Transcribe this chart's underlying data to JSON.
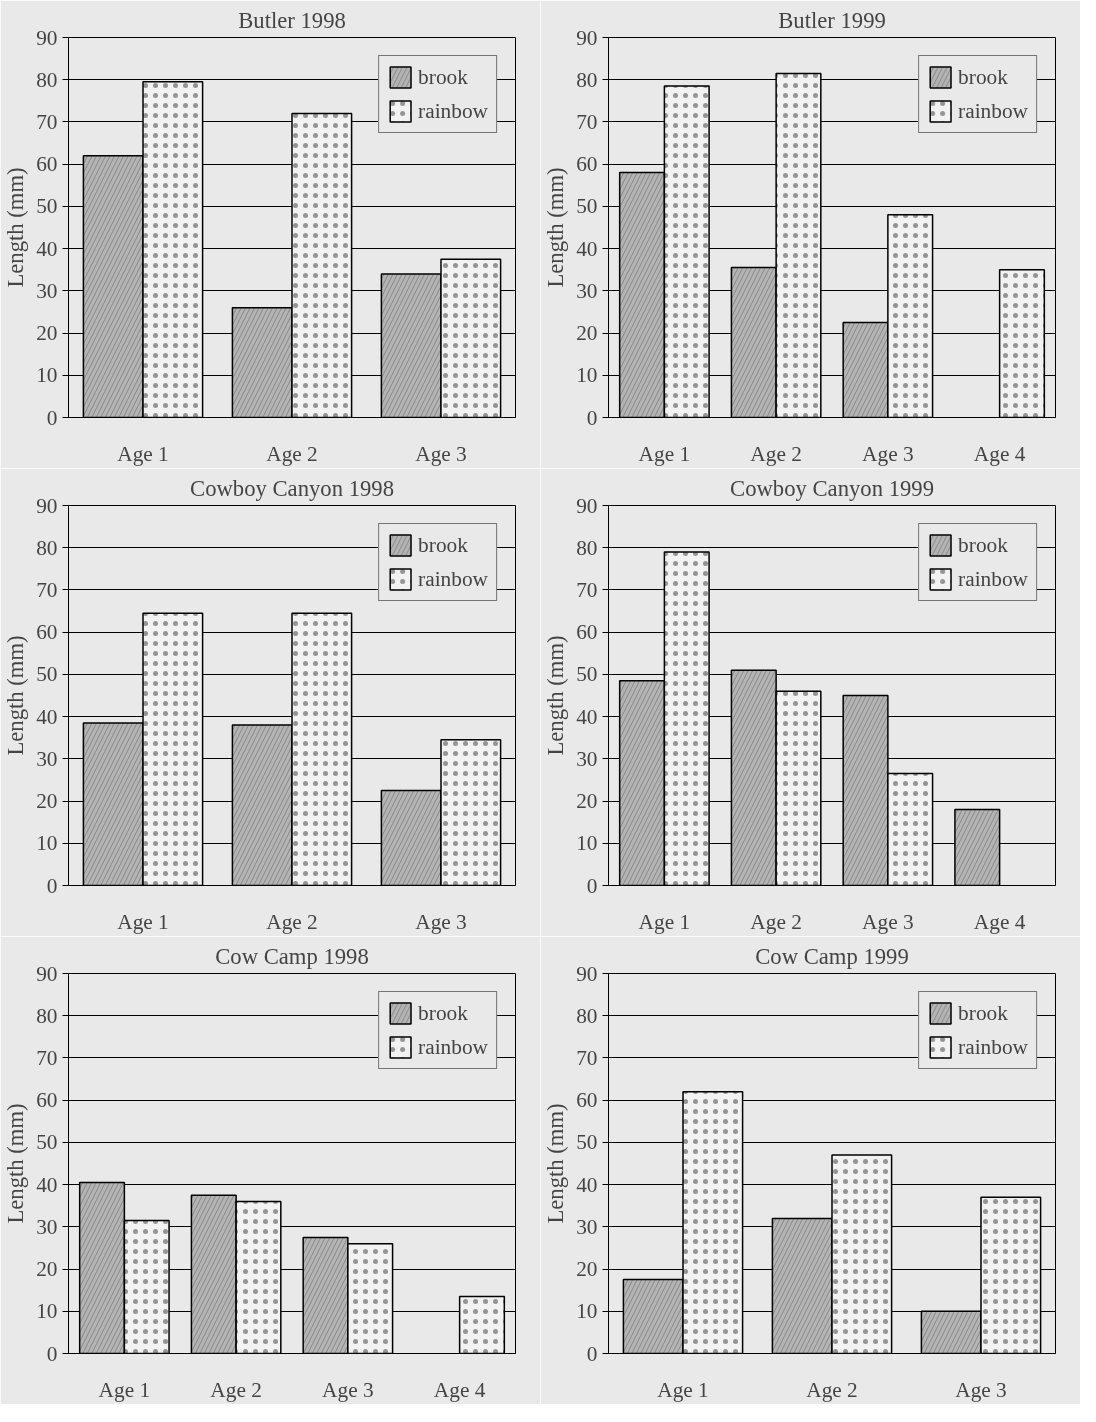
{
  "chart_data": [
    {
      "type": "bar",
      "title": "Butler 1998",
      "ylabel": "Length (mm)",
      "categories": [
        "Age 1",
        "Age 2",
        "Age 3"
      ],
      "series": [
        {
          "name": "brook",
          "color": "#b4b4b4",
          "values": [
            62,
            26,
            34
          ]
        },
        {
          "name": "rainbow",
          "color": "#f2f2f2",
          "values": [
            79.5,
            72,
            37.5
          ]
        }
      ],
      "ylim": [
        0,
        90
      ],
      "yticks": [
        0,
        10,
        20,
        30,
        40,
        50,
        60,
        70,
        80,
        90
      ],
      "grid": "y",
      "legend": "top right"
    },
    {
      "type": "bar",
      "title": "Butler 1999",
      "ylabel": "Length (mm)",
      "categories": [
        "Age 1",
        "Age 2",
        "Age 3",
        "Age 4"
      ],
      "series": [
        {
          "name": "brook",
          "color": "#b4b4b4",
          "values": [
            58,
            35.5,
            22.5,
            null
          ]
        },
        {
          "name": "rainbow",
          "color": "#f2f2f2",
          "values": [
            78.5,
            81.5,
            48,
            35
          ]
        }
      ],
      "ylim": [
        0,
        90
      ],
      "yticks": [
        0,
        10,
        20,
        30,
        40,
        50,
        60,
        70,
        80,
        90
      ],
      "grid": "y",
      "legend": "top right"
    },
    {
      "type": "bar",
      "title": "Cowboy Canyon 1998",
      "ylabel": "Length (mm)",
      "categories": [
        "Age 1",
        "Age 2",
        "Age 3"
      ],
      "series": [
        {
          "name": "brook",
          "color": "#b4b4b4",
          "values": [
            38.5,
            38,
            22.5
          ]
        },
        {
          "name": "rainbow",
          "color": "#f2f2f2",
          "values": [
            64.5,
            64.5,
            34.5
          ]
        }
      ],
      "ylim": [
        0,
        90
      ],
      "yticks": [
        0,
        10,
        20,
        30,
        40,
        50,
        60,
        70,
        80,
        90
      ],
      "grid": "y",
      "legend": "top right"
    },
    {
      "type": "bar",
      "title": "Cowboy Canyon 1999",
      "ylabel": "Length (mm)",
      "categories": [
        "Age 1",
        "Age 2",
        "Age 3",
        "Age 4"
      ],
      "series": [
        {
          "name": "brook",
          "color": "#b4b4b4",
          "values": [
            48.5,
            51,
            45,
            18
          ]
        },
        {
          "name": "rainbow",
          "color": "#f2f2f2",
          "values": [
            79,
            46,
            26.5,
            null
          ]
        }
      ],
      "ylim": [
        0,
        90
      ],
      "yticks": [
        0,
        10,
        20,
        30,
        40,
        50,
        60,
        70,
        80,
        90
      ],
      "grid": "y",
      "legend": "top right"
    },
    {
      "type": "bar",
      "title": "Cow Camp 1998",
      "ylabel": "Length (mm)",
      "categories": [
        "Age 1",
        "Age 2",
        "Age 3",
        "Age 4"
      ],
      "series": [
        {
          "name": "brook",
          "color": "#b4b4b4",
          "values": [
            40.5,
            37.5,
            27.5,
            null
          ]
        },
        {
          "name": "rainbow",
          "color": "#f2f2f2",
          "values": [
            31.5,
            36,
            26,
            13.5
          ]
        }
      ],
      "ylim": [
        0,
        90
      ],
      "yticks": [
        0,
        10,
        20,
        30,
        40,
        50,
        60,
        70,
        80,
        90
      ],
      "grid": "y",
      "legend": "top right"
    },
    {
      "type": "bar",
      "title": "Cow Camp 1999",
      "ylabel": "Length (mm)",
      "categories": [
        "Age 1",
        "Age 2",
        "Age 3"
      ],
      "series": [
        {
          "name": "brook",
          "color": "#b4b4b4",
          "values": [
            17.5,
            32,
            10
          ]
        },
        {
          "name": "rainbow",
          "color": "#f2f2f2",
          "values": [
            62,
            47,
            37
          ]
        }
      ],
      "ylim": [
        0,
        90
      ],
      "yticks": [
        0,
        10,
        20,
        30,
        40,
        50,
        60,
        70,
        80,
        90
      ],
      "grid": "y",
      "legend": "top right"
    }
  ]
}
